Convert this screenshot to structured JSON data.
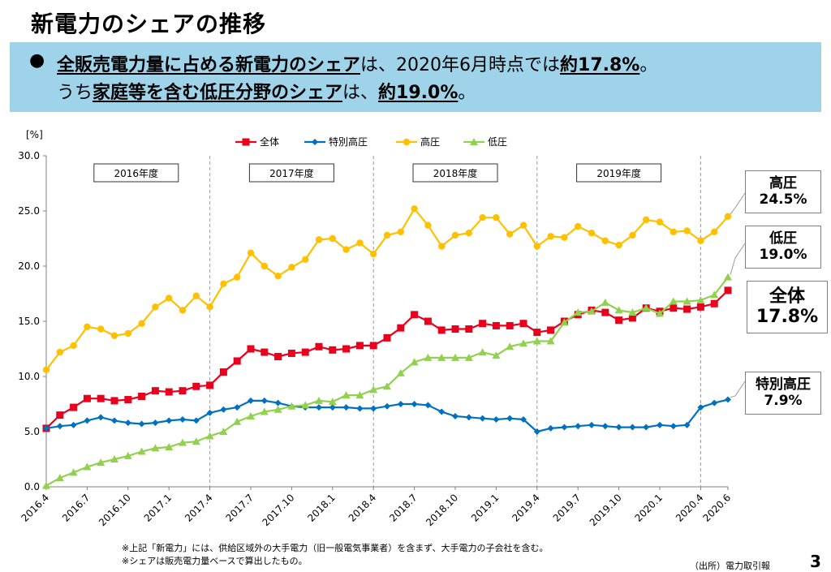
{
  "page": {
    "title": "新電力のシェアの推移",
    "banner": {
      "bullet": "●",
      "line1": {
        "a": "全販売電力量に占める新電力のシェア",
        "b": "は、2020年6月時点では",
        "c": "約17.8%",
        "d": "。"
      },
      "line2": {
        "a": "うち",
        "b": "家庭等を含む低圧分野のシェア",
        "c": "は、",
        "d": "約19.0%",
        "e": "。"
      }
    },
    "callouts": {
      "koatsu": {
        "name": "高圧",
        "value": "24.5%"
      },
      "teiatsu": {
        "name": "低圧",
        "value": "19.0%"
      },
      "zentai": {
        "name": "全体",
        "value": "17.8%"
      },
      "tokubetsu": {
        "name": "特別高圧",
        "value": "7.9%"
      }
    },
    "notes": [
      "※上記「新電力」には、供給区域外の大手電力（旧一般電気事業者）を含まず、大手電力の子会社を含む。",
      "※シェアは販売電力量ベースで算出したもの。"
    ],
    "source": "（出所）電力取引報",
    "page_number": "3"
  },
  "chart_data": {
    "type": "line",
    "title": "",
    "xlabel": "",
    "ylabel": "[%]",
    "ylim": [
      0,
      30
    ],
    "yticks": [
      "0.0",
      "5.0",
      "10.0",
      "15.0",
      "20.0",
      "25.0",
      "30.0"
    ],
    "x_start": "2016-04",
    "x_end": "2020-06",
    "x_tick_labels": [
      "2016.4",
      "2016.7",
      "2016.10",
      "2017.1",
      "2017.4",
      "2017.7",
      "2017.10",
      "2018.1",
      "2018.4",
      "2018.7",
      "2018.10",
      "2019.1",
      "2019.4",
      "2019.7",
      "2019.10",
      "2020.1",
      "2020.4",
      "2020.6"
    ],
    "fiscal_years": [
      "2016年度",
      "2017年度",
      "2018年度",
      "2019年度"
    ],
    "legend_position": "top",
    "grid": false,
    "series": [
      {
        "name": "全体",
        "color": "#e8001c",
        "marker": "square",
        "values": [
          5.3,
          6.5,
          7.2,
          8.0,
          8.0,
          7.8,
          7.9,
          8.2,
          8.7,
          8.6,
          8.7,
          9.1,
          9.2,
          10.4,
          11.4,
          12.5,
          12.2,
          11.8,
          12.1,
          12.2,
          12.7,
          12.4,
          12.5,
          12.8,
          12.8,
          13.5,
          14.4,
          15.6,
          15.0,
          14.2,
          14.3,
          14.3,
          14.8,
          14.6,
          14.6,
          14.8,
          14.0,
          14.2,
          15.0,
          15.6,
          16.0,
          15.8,
          15.1,
          15.3,
          16.2,
          15.9,
          16.2,
          16.1,
          16.3,
          16.6,
          17.8
        ]
      },
      {
        "name": "特別高圧",
        "color": "#0070c0",
        "marker": "diamond",
        "values": [
          5.3,
          5.5,
          5.6,
          6.0,
          6.3,
          6.0,
          5.8,
          5.7,
          5.8,
          6.0,
          6.1,
          6.0,
          6.7,
          7.0,
          7.2,
          7.8,
          7.8,
          7.6,
          7.3,
          7.2,
          7.2,
          7.2,
          7.2,
          7.1,
          7.1,
          7.3,
          7.5,
          7.5,
          7.4,
          6.8,
          6.4,
          6.3,
          6.2,
          6.1,
          6.2,
          6.1,
          5.0,
          5.3,
          5.4,
          5.5,
          5.6,
          5.5,
          5.4,
          5.4,
          5.4,
          5.6,
          5.5,
          5.6,
          7.2,
          7.6,
          7.9
        ]
      },
      {
        "name": "高圧",
        "color": "#ffc000",
        "marker": "circle",
        "values": [
          10.6,
          12.2,
          12.8,
          14.5,
          14.3,
          13.7,
          13.9,
          14.8,
          16.3,
          17.1,
          16.0,
          17.3,
          16.3,
          18.4,
          19.0,
          21.2,
          20.0,
          19.1,
          19.9,
          20.6,
          22.4,
          22.5,
          21.5,
          22.1,
          21.1,
          22.8,
          23.1,
          25.2,
          23.7,
          21.8,
          22.8,
          23.0,
          24.4,
          24.4,
          22.9,
          23.7,
          21.8,
          22.7,
          22.6,
          23.6,
          23.0,
          22.3,
          21.9,
          22.8,
          24.2,
          24.0,
          23.1,
          23.2,
          22.3,
          23.1,
          24.5
        ]
      },
      {
        "name": "低圧",
        "color": "#92d050",
        "marker": "triangle",
        "values": [
          0.1,
          0.8,
          1.3,
          1.8,
          2.2,
          2.5,
          2.8,
          3.2,
          3.5,
          3.6,
          4.0,
          4.1,
          4.6,
          5.0,
          5.9,
          6.4,
          6.8,
          7.0,
          7.3,
          7.4,
          7.8,
          7.7,
          8.3,
          8.3,
          8.8,
          9.1,
          10.3,
          11.3,
          11.7,
          11.7,
          11.7,
          11.7,
          12.2,
          11.9,
          12.7,
          13.0,
          13.2,
          13.2,
          14.9,
          15.8,
          15.9,
          16.7,
          16.0,
          15.8,
          16.2,
          15.7,
          16.8,
          16.8,
          16.9,
          17.4,
          19.0
        ]
      }
    ]
  }
}
